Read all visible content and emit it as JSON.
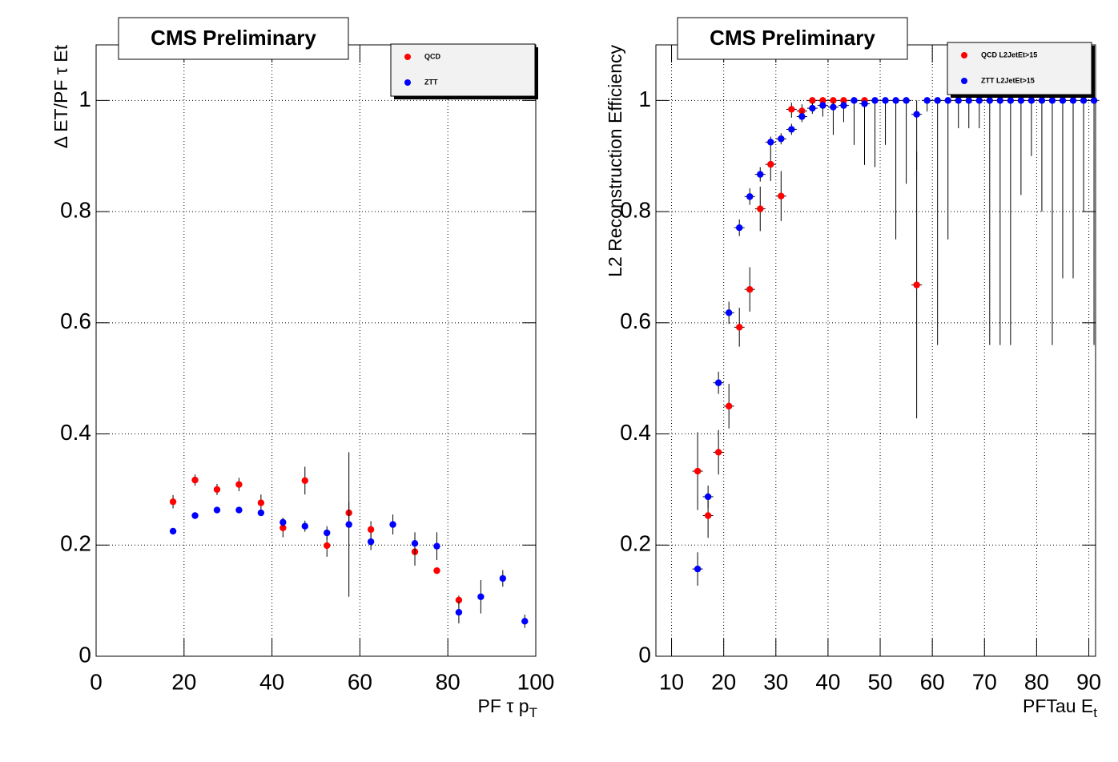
{
  "chart_data": [
    {
      "type": "scatter",
      "title": "CMS Preliminary",
      "xlabel": "PF τ p",
      "xlabel_sub": "T",
      "ylabel": "Δ ET/PF τ Et",
      "xlim": [
        0,
        100
      ],
      "ylim": [
        0,
        1.1
      ],
      "xticks": [
        0,
        20,
        40,
        60,
        80,
        100
      ],
      "yticks": [
        0,
        0.2,
        0.4,
        0.6,
        0.8,
        1
      ],
      "grid": true,
      "legend": "top-right",
      "series": [
        {
          "name": "QCD",
          "color": "#ff0000",
          "x": [
            17.5,
            22.5,
            27.5,
            32.5,
            37.5,
            42.5,
            47.5,
            52.5,
            57.5,
            62.5,
            72.5,
            77.5,
            82.5
          ],
          "values": [
            0.278,
            0.317,
            0.3,
            0.309,
            0.276,
            0.231,
            0.316,
            0.199,
            0.258,
            0.228,
            0.188,
            0.154,
            0.101
          ],
          "errors": [
            0.012,
            0.01,
            0.01,
            0.012,
            0.015,
            0.017,
            0.025,
            0.02,
            0.02,
            0.015,
            0.025,
            0.005,
            0.008
          ]
        },
        {
          "name": "ZTT",
          "color": "#0000ff",
          "x": [
            17.5,
            22.5,
            27.5,
            32.5,
            37.5,
            42.5,
            47.5,
            52.5,
            57.5,
            62.5,
            67.5,
            72.5,
            77.5,
            82.5,
            87.5,
            92.5,
            97.5
          ],
          "values": [
            0.225,
            0.253,
            0.263,
            0.263,
            0.258,
            0.241,
            0.234,
            0.222,
            0.237,
            0.206,
            0.237,
            0.203,
            0.198,
            0.079,
            0.107,
            0.14,
            0.063
          ],
          "errors": [
            0.005,
            0.005,
            0.005,
            0.005,
            0.005,
            0.008,
            0.01,
            0.012,
            0.13,
            0.015,
            0.018,
            0.02,
            0.025,
            0.02,
            0.03,
            0.015,
            0.012
          ]
        }
      ]
    },
    {
      "type": "scatter",
      "title": "CMS Preliminary",
      "xlabel": "PFTau E",
      "xlabel_sub": "t",
      "ylabel": "L2 Reconstruction Efficiency",
      "xlim": [
        7,
        91.3
      ],
      "ylim": [
        0,
        1.1
      ],
      "xticks": [
        10,
        20,
        30,
        40,
        50,
        60,
        70,
        80,
        90
      ],
      "yticks": [
        0,
        0.2,
        0.4,
        0.6,
        0.8,
        1
      ],
      "grid": true,
      "legend": "top-right",
      "x_error": 1,
      "series": [
        {
          "name": "QCD L2JetEt>15",
          "color": "#ff0000",
          "x": [
            15,
            17,
            19,
            21,
            23,
            25,
            27,
            29,
            31,
            33,
            35,
            37,
            39,
            41,
            43,
            47,
            57
          ],
          "values": [
            0.333,
            0.253,
            0.367,
            0.45,
            0.592,
            0.66,
            0.805,
            0.885,
            0.828,
            0.984,
            0.981,
            1,
            1,
            1,
            1,
            1,
            0.668
          ],
          "errors_low": [
            0.07,
            0.04,
            0.04,
            0.04,
            0.035,
            0.04,
            0.04,
            0.03,
            0.045,
            0.015,
            0.015,
            0.01,
            0.01,
            0.01,
            0.01,
            0.01,
            0.24
          ],
          "errors_high": [
            0.07,
            0.04,
            0.04,
            0.04,
            0.035,
            0.04,
            0.04,
            0.03,
            0.045,
            0.012,
            0.012,
            0,
            0,
            0,
            0,
            0,
            0.24
          ]
        },
        {
          "name": "ZTT L2JetEt>15",
          "color": "#0000ff",
          "x": [
            15,
            17,
            19,
            21,
            23,
            25,
            27,
            29,
            31,
            33,
            35,
            37,
            39,
            41,
            43,
            45,
            47,
            49,
            51,
            53,
            55,
            57,
            59,
            61,
            63,
            65,
            67,
            69,
            71,
            73,
            75,
            77,
            79,
            81,
            83,
            85,
            87,
            89,
            91
          ],
          "values": [
            0.157,
            0.287,
            0.492,
            0.618,
            0.771,
            0.827,
            0.867,
            0.925,
            0.931,
            0.948,
            0.971,
            0.986,
            0.991,
            0.988,
            0.991,
            1,
            0.994,
            1,
            1,
            1,
            1,
            0.975,
            1,
            1,
            1,
            1,
            1,
            1,
            1,
            1,
            1,
            1,
            1,
            1,
            1,
            1,
            1,
            1,
            1
          ],
          "errors_low": [
            0.03,
            0.02,
            0.02,
            0.02,
            0.015,
            0.015,
            0.013,
            0.01,
            0.01,
            0.01,
            0.01,
            0.01,
            0.02,
            0.05,
            0.03,
            0.08,
            0.11,
            0.12,
            0.08,
            0.25,
            0.15,
            0.1,
            0.02,
            0.44,
            0.25,
            0.05,
            0.05,
            0.05,
            0.44,
            0.44,
            0.44,
            0.17,
            0.1,
            0.2,
            0.44,
            0.32,
            0.32,
            0.2,
            0.44
          ],
          "errors_high": [
            0.03,
            0.02,
            0.02,
            0.02,
            0.015,
            0.015,
            0.013,
            0.01,
            0.01,
            0.01,
            0.01,
            0.01,
            0.008,
            0.01,
            0.008,
            0,
            0.006,
            0,
            0,
            0,
            0,
            0.025,
            0,
            0,
            0,
            0,
            0,
            0,
            0,
            0,
            0,
            0,
            0,
            0,
            0,
            0,
            0,
            0,
            0
          ]
        }
      ]
    }
  ]
}
